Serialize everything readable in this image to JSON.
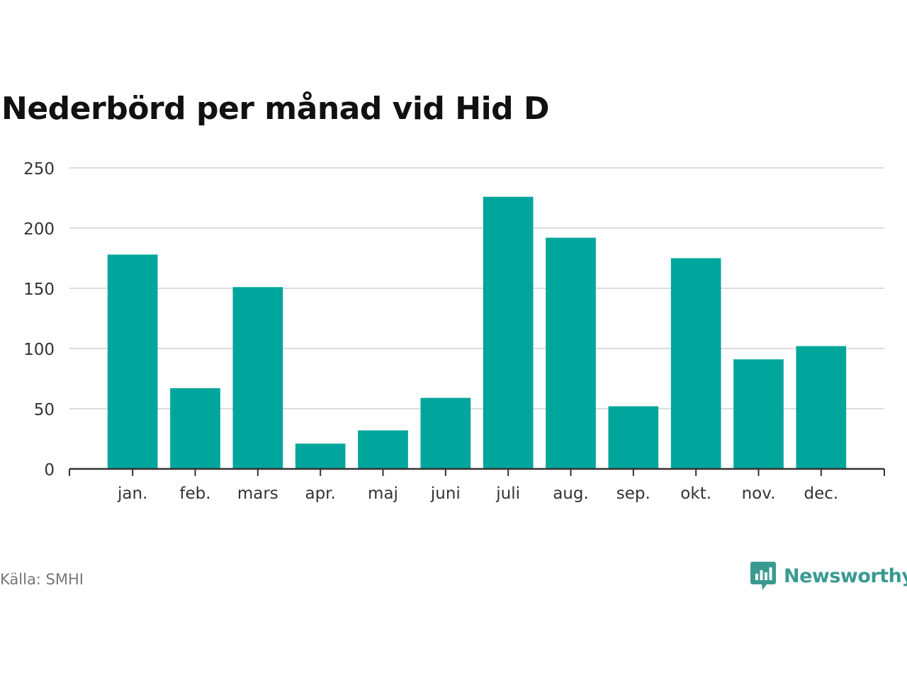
{
  "colors": {
    "bar": "#00a59b",
    "grid": "#dddddd",
    "axis": "#333333",
    "brand": "#3a9a90"
  },
  "chart_data": {
    "type": "bar",
    "title": "Nederbörd per månad vid Hid D",
    "xlabel": "",
    "ylabel": "",
    "categories": [
      "jan.",
      "feb.",
      "mars",
      "apr.",
      "maj",
      "juni",
      "juli",
      "aug.",
      "sep.",
      "okt.",
      "nov.",
      "dec."
    ],
    "values": [
      178,
      67,
      151,
      21,
      32,
      59,
      226,
      192,
      52,
      175,
      91,
      102
    ],
    "ylim": [
      0,
      250
    ],
    "yticks": [
      0,
      50,
      100,
      150,
      200,
      250
    ],
    "grid": true,
    "legend": "none"
  },
  "footer": {
    "source": "Källa: SMHI",
    "brand_name": "Newsworthy",
    "brand_icon": "newsworthy-logo-icon"
  }
}
